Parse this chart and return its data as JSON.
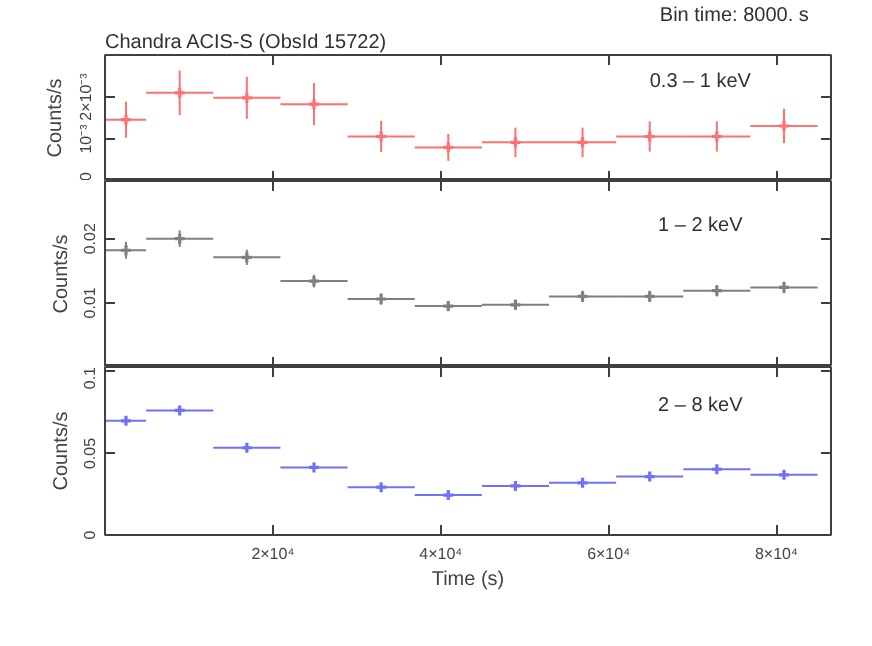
{
  "chart_data": [
    {
      "type": "scatter",
      "title": "Chandra ACIS-S (ObsId 15722)",
      "annotations": [
        "Bin time:   8000.   s",
        "0.3 – 1 keV"
      ],
      "ylabel": "Counts/s",
      "marker": "cross",
      "color": "#ff7070",
      "x": [
        2500,
        8900,
        16900,
        24900,
        32900,
        40900,
        48900,
        56900,
        64900,
        72900,
        80900
      ],
      "xerrors": [
        2400,
        4000,
        4000,
        4000,
        4000,
        4000,
        4000,
        4000,
        4000,
        4000,
        4000
      ],
      "values": [
        0.00146,
        0.0021,
        0.00198,
        0.00183,
        0.00106,
        0.0008,
        0.00092,
        0.00092,
        0.00106,
        0.00106,
        0.00131
      ],
      "errors": [
        0.00043,
        0.00053,
        0.0005,
        0.0005,
        0.00037,
        0.00032,
        0.00035,
        0.00035,
        0.00036,
        0.00036,
        0.00041
      ],
      "xlim": [
        0,
        86500
      ],
      "ylim": [
        0,
        0.003
      ],
      "xticks": [
        {
          "value": 20000,
          "label": null
        },
        {
          "value": 40000,
          "label": null
        },
        {
          "value": 60000,
          "label": null
        },
        {
          "value": 80000,
          "label": null
        }
      ],
      "yticks": [
        0,
        {
          "value": 0.001,
          "label": "10⁻³"
        },
        {
          "value": 0.002,
          "label": "2×10⁻³"
        }
      ],
      "tick_labels": "y"
    },
    {
      "type": "scatter",
      "annotations": [
        "1 – 2 keV"
      ],
      "ylabel": "Counts/s",
      "marker": "cross",
      "color": "#808080",
      "x": [
        2500,
        8900,
        16900,
        24900,
        32900,
        40900,
        48900,
        56900,
        64900,
        72900,
        80900
      ],
      "xerrors": [
        2400,
        4000,
        4000,
        4000,
        4000,
        4000,
        4000,
        4000,
        4000,
        4000,
        4000
      ],
      "values": [
        0.0182,
        0.02,
        0.0171,
        0.0134,
        0.0106,
        0.0095,
        0.0097,
        0.011,
        0.011,
        0.0119,
        0.0124
      ],
      "errors": [
        0.0013,
        0.0013,
        0.0012,
        0.001,
        0.0009,
        0.0008,
        0.0008,
        0.0009,
        0.0009,
        0.0009,
        0.0009
      ],
      "xlim": [
        0,
        86500
      ],
      "ylim": [
        0,
        0.029
      ],
      "xticks": [
        {
          "value": 20000,
          "label": null
        },
        {
          "value": 40000,
          "label": null
        },
        {
          "value": 60000,
          "label": null
        },
        {
          "value": 80000,
          "label": null
        }
      ],
      "yticks": [
        0.01,
        0.02
      ],
      "tick_labels": "y"
    },
    {
      "type": "scatter",
      "annotations": [
        "2 – 8 keV"
      ],
      "xlabel": "Time (s)",
      "ylabel": "Counts/s",
      "marker": "cross",
      "color": "#7070ff",
      "x": [
        2500,
        8900,
        16900,
        24900,
        32900,
        40900,
        48900,
        56900,
        64900,
        72900,
        80900
      ],
      "xerrors": [
        2400,
        4000,
        4000,
        4000,
        4000,
        4000,
        4000,
        4000,
        4000,
        4000,
        4000
      ],
      "values": [
        0.07,
        0.0764,
        0.0535,
        0.0414,
        0.0293,
        0.0245,
        0.0301,
        0.032,
        0.0358,
        0.0403,
        0.0369
      ],
      "errors": [
        0.0018,
        0.0018,
        0.0016,
        0.0014,
        0.0013,
        0.0012,
        0.0013,
        0.0013,
        0.0014,
        0.0014,
        0.0014
      ],
      "xlim": [
        0,
        86500
      ],
      "ylim": [
        0,
        0.103
      ],
      "xticks": [
        {
          "value": 20000,
          "label": "2×10⁴"
        },
        {
          "value": 40000,
          "label": "4×10⁴"
        },
        {
          "value": 60000,
          "label": "6×10⁴"
        },
        {
          "value": 80000,
          "label": "8×10⁴"
        }
      ],
      "yticks": [
        0,
        0.05,
        0.1
      ]
    }
  ]
}
